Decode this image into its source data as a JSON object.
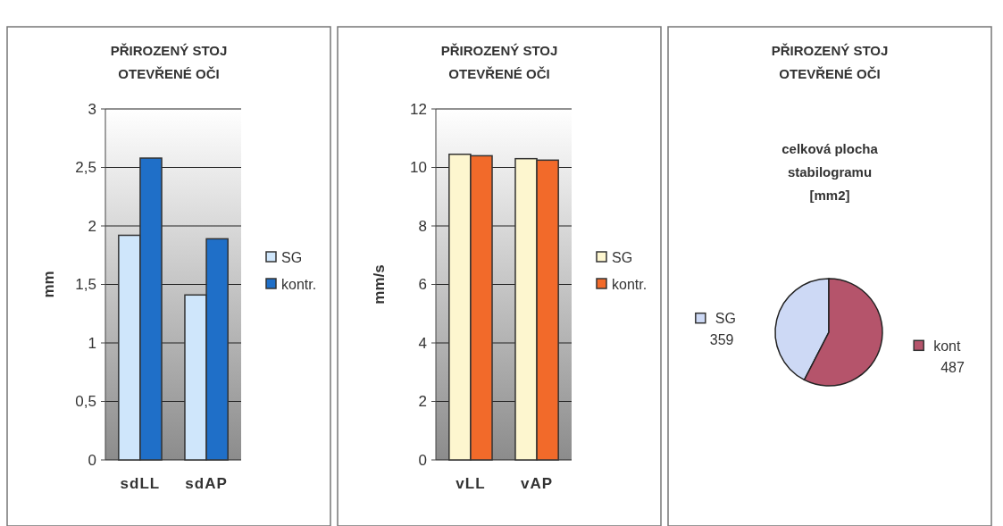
{
  "chart_data": [
    {
      "type": "bar",
      "title": "PŘIROZENÝ STOJ\nOTEVŘENÉ OČI",
      "ylabel": "mm",
      "categories": [
        "sdLL",
        "sdAP"
      ],
      "series": [
        {
          "name": "SG",
          "color": "#cfe6fb",
          "values": [
            1.92,
            1.41
          ]
        },
        {
          "name": "kontr.",
          "color": "#1f6fc8",
          "values": [
            2.58,
            1.89
          ]
        }
      ],
      "ylim": [
        0,
        3
      ],
      "yticks": [
        0,
        {
          "value": 0.5,
          "label": "0,5"
        },
        1,
        {
          "value": 1.5,
          "label": "1,5"
        },
        2,
        {
          "value": 2.5,
          "label": "2,5"
        },
        3
      ],
      "grid": "y",
      "legend": "right"
    },
    {
      "type": "bar",
      "title": "PŘIROZENÝ STOJ\nOTEVŘENÉ OČI",
      "ylabel": "mm/s",
      "categories": [
        "vLL",
        "vAP"
      ],
      "series": [
        {
          "name": "SG",
          "color": "#fdf6cf",
          "values": [
            10.45,
            10.3
          ]
        },
        {
          "name": "kontr.",
          "color": "#f26a2a",
          "values": [
            10.4,
            10.25
          ]
        }
      ],
      "ylim": [
        0,
        12
      ],
      "yticks": [
        0,
        2,
        4,
        6,
        8,
        10,
        12
      ],
      "grid": "y",
      "legend": "right"
    },
    {
      "type": "pie",
      "title": "PŘIROZENÝ STOJ\nOTEVŘENÉ OČI",
      "subtitle": "celková plocha\nstabilogramu\n[mm2]",
      "categories": [
        "SG",
        "kont"
      ],
      "values": [
        359,
        487
      ],
      "colors": [
        "#cdd9f5",
        "#b5546b"
      ],
      "data_labels": true,
      "legend": "right"
    }
  ]
}
